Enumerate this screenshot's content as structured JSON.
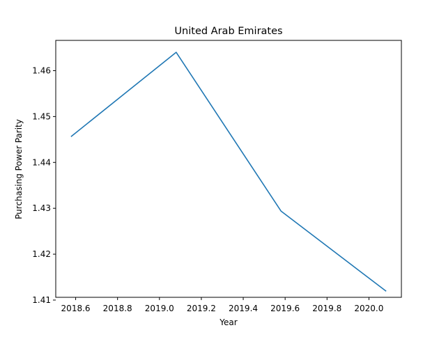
{
  "chart_data": {
    "type": "line",
    "title": "United Arab Emirates",
    "xlabel": "Year",
    "ylabel": "Purchasing Power Parity",
    "x": [
      2018.58,
      2019.08,
      2019.58,
      2020.08
    ],
    "series": [
      {
        "values": [
          1.4457,
          1.464,
          1.4294,
          1.412
        ]
      }
    ],
    "xlim": [
      2018.505,
      2020.155
    ],
    "ylim": [
      1.4106,
      1.4666
    ],
    "xticks": [
      2018.6,
      2018.8,
      2019.0,
      2019.2,
      2019.4,
      2019.6,
      2019.8,
      2020.0
    ],
    "xtick_labels": [
      "2018.6",
      "2018.8",
      "2019.0",
      "2019.2",
      "2019.4",
      "2019.6",
      "2019.8",
      "2020.0"
    ],
    "yticks": [
      1.41,
      1.42,
      1.43,
      1.44,
      1.45,
      1.46
    ],
    "ytick_labels": [
      "1.41",
      "1.42",
      "1.43",
      "1.44",
      "1.45",
      "1.46"
    ],
    "grid": false,
    "line_color": "#1f77b4"
  }
}
